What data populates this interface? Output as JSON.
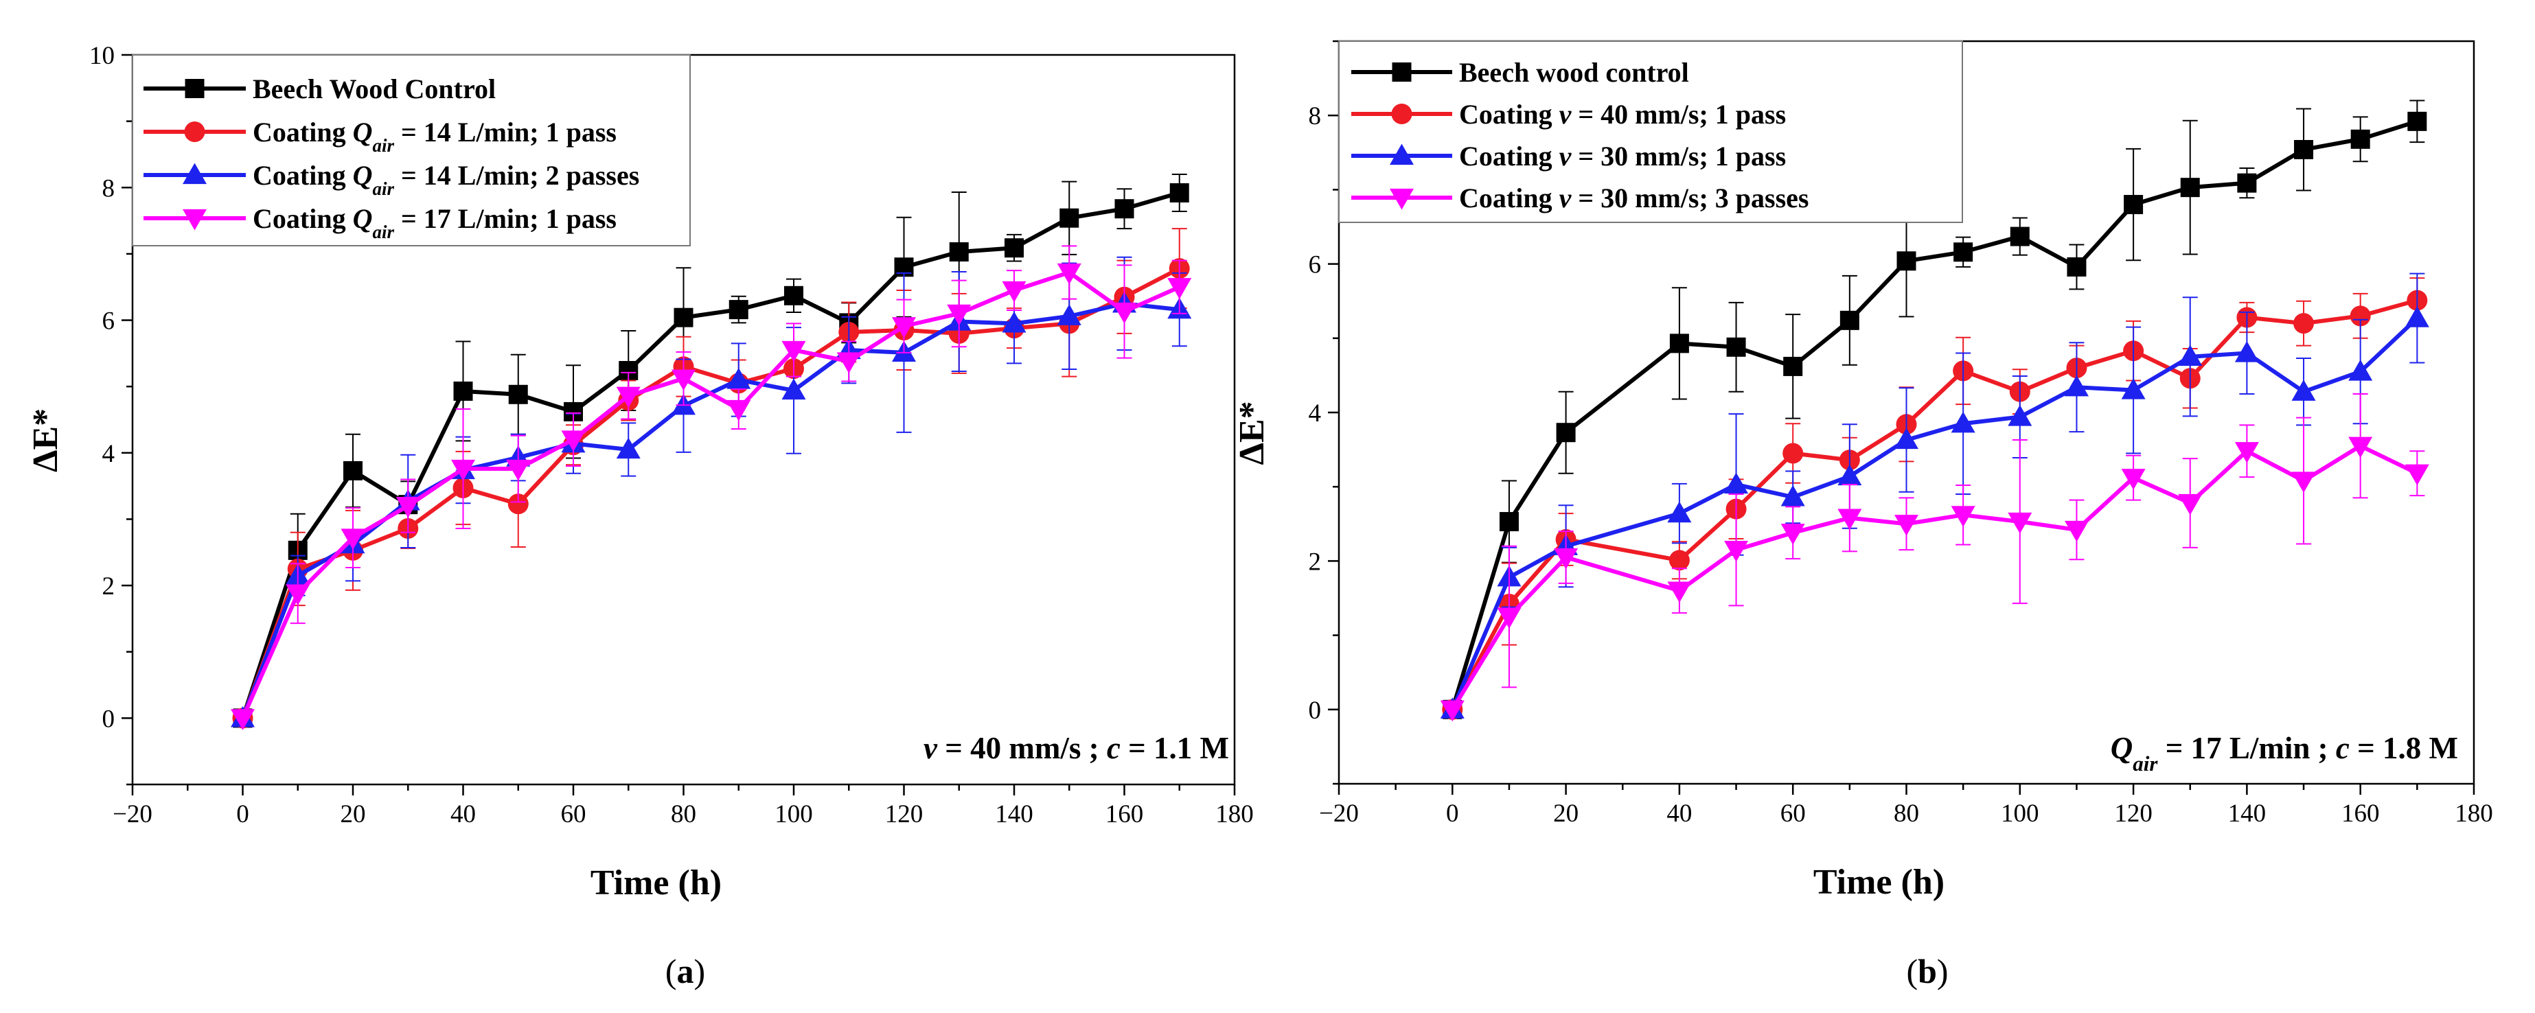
{
  "chart_data": [
    {
      "type": "line",
      "panel_label": "a",
      "xlabel": "Time (h)",
      "ylabel": "ΔE*",
      "xlim": [
        -20,
        180
      ],
      "ylim": [
        -1,
        10
      ],
      "x_ticks": [
        -20,
        0,
        20,
        40,
        60,
        80,
        100,
        120,
        140,
        160,
        180
      ],
      "y_ticks": [
        0,
        2,
        4,
        6,
        8,
        10
      ],
      "annotation": [
        {
          "text": "v",
          "style": "italic"
        },
        {
          "text": " = 40 mm/s ; ",
          "style": "normal"
        },
        {
          "text": "c",
          "style": "italic"
        },
        {
          "text": " = 1.1 M",
          "style": "normal"
        }
      ],
      "legend": {
        "placement": "top-left"
      },
      "series": [
        {
          "name": "Beech Wood Control",
          "legend_parts": [
            {
              "text": "Beech Wood Control",
              "style": "normal"
            }
          ],
          "color": "#000000",
          "marker": "square",
          "x": [
            0,
            10,
            20,
            30,
            40,
            50,
            60,
            70,
            80,
            90,
            100,
            110,
            120,
            130,
            140,
            150,
            160,
            170
          ],
          "y": [
            0,
            2.53,
            3.73,
            3.22,
            4.93,
            4.88,
            4.62,
            5.24,
            6.04,
            6.16,
            6.37,
            5.96,
            6.8,
            7.03,
            7.09,
            7.54,
            7.68,
            7.92
          ],
          "err": [
            0,
            0.55,
            0.55,
            0.35,
            0.75,
            0.6,
            0.7,
            0.6,
            0.75,
            0.2,
            0.25,
            0.3,
            0.75,
            0.9,
            0.2,
            0.55,
            0.3,
            0.28
          ]
        },
        {
          "name": "Coating Qair = 14 L/min; 1 pass",
          "legend_parts": [
            {
              "text": "Coating ",
              "style": "normal"
            },
            {
              "text": "Q",
              "style": "italic"
            },
            {
              "text": "air",
              "style": "sub"
            },
            {
              "text": " = 14 L/min; 1 pass",
              "style": "normal"
            }
          ],
          "color": "#ee1c25",
          "marker": "circle",
          "x": [
            0,
            10,
            20,
            30,
            40,
            50,
            60,
            70,
            80,
            90,
            100,
            110,
            120,
            130,
            140,
            150,
            160,
            170
          ],
          "y": [
            0,
            2.25,
            2.53,
            2.86,
            3.47,
            3.23,
            4.12,
            4.79,
            5.3,
            5.05,
            5.27,
            5.82,
            5.85,
            5.8,
            5.88,
            5.95,
            6.35,
            6.78
          ],
          "err": [
            0,
            0.55,
            0.6,
            0.3,
            0.55,
            0.65,
            0.3,
            0.3,
            0.45,
            0.35,
            0.4,
            0.45,
            0.6,
            0.6,
            0.3,
            0.8,
            0.55,
            0.6
          ]
        },
        {
          "name": "Coating Qair = 14 L/min; 2 passes",
          "legend_parts": [
            {
              "text": "Coating ",
              "style": "normal"
            },
            {
              "text": "Q",
              "style": "italic"
            },
            {
              "text": "air",
              "style": "sub"
            },
            {
              "text": " = 14 L/min; 2 passes",
              "style": "normal"
            }
          ],
          "color": "#1e22ee",
          "marker": "triangle-up",
          "x": [
            0,
            10,
            20,
            30,
            40,
            50,
            60,
            70,
            80,
            90,
            100,
            110,
            120,
            130,
            140,
            150,
            160,
            170
          ],
          "y": [
            0,
            2.15,
            2.62,
            3.27,
            3.74,
            3.93,
            4.14,
            4.05,
            4.71,
            5.1,
            4.94,
            5.55,
            5.51,
            5.98,
            5.95,
            6.06,
            6.25,
            6.16
          ],
          "err": [
            0,
            0.3,
            0.55,
            0.7,
            0.5,
            0.35,
            0.45,
            0.4,
            0.7,
            0.55,
            0.95,
            0.5,
            1.2,
            0.75,
            0.6,
            0.8,
            0.7,
            0.55
          ]
        },
        {
          "name": "Coating Qair = 17 L/min; 1 pass",
          "legend_parts": [
            {
              "text": "Coating ",
              "style": "normal"
            },
            {
              "text": "Q",
              "style": "italic"
            },
            {
              "text": "air",
              "style": "sub"
            },
            {
              "text": " = 17 L/min; 1 pass",
              "style": "normal"
            }
          ],
          "color": "#ff00ff",
          "marker": "triangle-down",
          "x": [
            0,
            10,
            20,
            30,
            40,
            50,
            60,
            70,
            80,
            90,
            100,
            110,
            120,
            130,
            140,
            150,
            160,
            170
          ],
          "y": [
            0,
            1.88,
            2.72,
            3.2,
            3.76,
            3.76,
            4.2,
            4.86,
            5.12,
            4.66,
            5.55,
            5.38,
            5.91,
            6.1,
            6.45,
            6.72,
            6.13,
            6.5
          ],
          "err": [
            0,
            0.45,
            0.45,
            0.4,
            0.9,
            0.5,
            0.4,
            0.35,
            0.4,
            0.3,
            0.4,
            0.3,
            0.4,
            0.5,
            0.3,
            0.4,
            0.7,
            0.4
          ]
        }
      ]
    },
    {
      "type": "line",
      "panel_label": "b",
      "xlabel": "Time (h)",
      "ylabel": "ΔE*",
      "xlim": [
        -20,
        180
      ],
      "ylim": [
        -1,
        9
      ],
      "x_ticks": [
        -20,
        0,
        20,
        40,
        60,
        80,
        100,
        120,
        140,
        160,
        180
      ],
      "y_ticks": [
        0,
        2,
        4,
        6,
        8
      ],
      "annotation": [
        {
          "text": "Q",
          "style": "italic"
        },
        {
          "text": "air",
          "style": "sub"
        },
        {
          "text": " = 17 L/min ;  ",
          "style": "normal"
        },
        {
          "text": "c",
          "style": "italic"
        },
        {
          "text": " = 1.8 M",
          "style": "normal"
        }
      ],
      "legend": {
        "placement": "top-left"
      },
      "series": [
        {
          "name": "Beech wood control",
          "legend_parts": [
            {
              "text": "Beech wood control",
              "style": "normal"
            }
          ],
          "color": "#000000",
          "marker": "square",
          "x": [
            0,
            10,
            20,
            40,
            50,
            60,
            70,
            80,
            90,
            100,
            110,
            120,
            130,
            140,
            150,
            160,
            170
          ],
          "y": [
            0,
            2.53,
            3.73,
            4.93,
            4.88,
            4.62,
            5.24,
            6.04,
            6.16,
            6.37,
            5.96,
            6.8,
            7.03,
            7.09,
            7.54,
            7.68,
            7.92
          ],
          "err": [
            0,
            0.55,
            0.55,
            0.75,
            0.6,
            0.7,
            0.6,
            0.75,
            0.2,
            0.25,
            0.3,
            0.75,
            0.9,
            0.2,
            0.55,
            0.3,
            0.28
          ]
        },
        {
          "name": "Coating v = 40 mm/s; 1 pass",
          "legend_parts": [
            {
              "text": "Coating ",
              "style": "normal"
            },
            {
              "text": "v",
              "style": "italic"
            },
            {
              "text": " = 40 mm/s; 1 pass",
              "style": "normal"
            }
          ],
          "color": "#ee1c25",
          "marker": "circle",
          "x": [
            0,
            10,
            20,
            40,
            50,
            60,
            70,
            80,
            90,
            100,
            110,
            120,
            130,
            140,
            150,
            160,
            170
          ],
          "y": [
            0,
            1.42,
            2.29,
            2.01,
            2.7,
            3.45,
            3.36,
            3.84,
            4.56,
            4.28,
            4.6,
            4.83,
            4.46,
            5.28,
            5.2,
            5.3,
            5.51
          ],
          "err": [
            0,
            0.55,
            0.35,
            0.25,
            0.4,
            0.4,
            0.3,
            0.5,
            0.45,
            0.3,
            0.3,
            0.4,
            0.4,
            0.2,
            0.3,
            0.3,
            0.3
          ]
        },
        {
          "name": "Coating v = 30 mm/s; 1 pass",
          "legend_parts": [
            {
              "text": "Coating ",
              "style": "normal"
            },
            {
              "text": "v",
              "style": "italic"
            },
            {
              "text": " = 30 mm/s; 1 pass",
              "style": "normal"
            }
          ],
          "color": "#1e22ee",
          "marker": "triangle-up",
          "x": [
            0,
            10,
            20,
            40,
            50,
            60,
            70,
            80,
            90,
            100,
            110,
            120,
            130,
            140,
            150,
            160,
            170
          ],
          "y": [
            0,
            1.78,
            2.2,
            2.64,
            3.03,
            2.86,
            3.14,
            3.63,
            3.85,
            3.94,
            4.34,
            4.3,
            4.75,
            4.8,
            4.28,
            4.55,
            5.27
          ],
          "err": [
            0,
            0.4,
            0.55,
            0.4,
            0.95,
            0.35,
            0.7,
            0.7,
            0.95,
            0.55,
            0.6,
            0.85,
            0.8,
            0.55,
            0.45,
            0.7,
            0.6
          ]
        },
        {
          "name": "Coating v = 30 mm/s; 3 passes",
          "legend_parts": [
            {
              "text": "Coating ",
              "style": "normal"
            },
            {
              "text": "v",
              "style": "italic"
            },
            {
              "text": " = 30 mm/s; 3 passes",
              "style": "normal"
            }
          ],
          "color": "#ff00ff",
          "marker": "triangle-down",
          "x": [
            0,
            10,
            20,
            40,
            50,
            60,
            70,
            80,
            90,
            100,
            110,
            120,
            130,
            140,
            150,
            160,
            170
          ],
          "y": [
            0,
            1.25,
            2.05,
            1.6,
            2.15,
            2.38,
            2.58,
            2.5,
            2.62,
            2.53,
            2.42,
            3.12,
            2.78,
            3.48,
            3.08,
            3.55,
            3.18
          ],
          "err": [
            0,
            0.95,
            0.35,
            0.3,
            0.75,
            0.35,
            0.45,
            0.35,
            0.4,
            1.1,
            0.4,
            0.3,
            0.6,
            0.35,
            0.85,
            0.7,
            0.3
          ]
        }
      ]
    }
  ]
}
